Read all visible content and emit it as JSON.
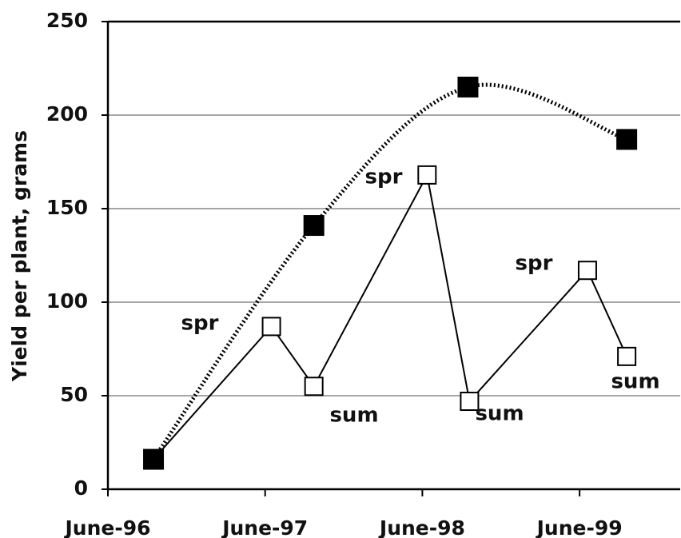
{
  "chart_data": {
    "type": "line",
    "ylabel": "Yield per plant, grams",
    "xlim": [
      1996.46,
      2000.1
    ],
    "xticks": [
      {
        "value": 1996.46,
        "label": "June-96"
      },
      {
        "value": 1997.46,
        "label": "June-97"
      },
      {
        "value": 1998.46,
        "label": "June-98"
      },
      {
        "value": 1999.46,
        "label": "June-99"
      }
    ],
    "ylim": [
      0,
      250
    ],
    "yticks": [
      0,
      50,
      100,
      150,
      200,
      250
    ],
    "grid": true,
    "series": [
      {
        "color": "#000000",
        "style": "dotted",
        "marker": "filled-square",
        "x": [
          1996.75,
          1997.77,
          1998.75,
          1999.76
        ],
        "values": [
          16,
          141,
          215,
          187
        ]
      },
      {
        "color": "#000000",
        "style": "solid",
        "marker": "open-square",
        "x": [
          1996.75,
          1997.5,
          1997.77,
          1998.49,
          1998.76,
          1999.51,
          1999.76
        ],
        "values": [
          16,
          87,
          55,
          168,
          47,
          117,
          71
        ]
      }
    ],
    "annotations": [
      "spr",
      "sum",
      "spr",
      "sum",
      "spr",
      "sum"
    ]
  }
}
